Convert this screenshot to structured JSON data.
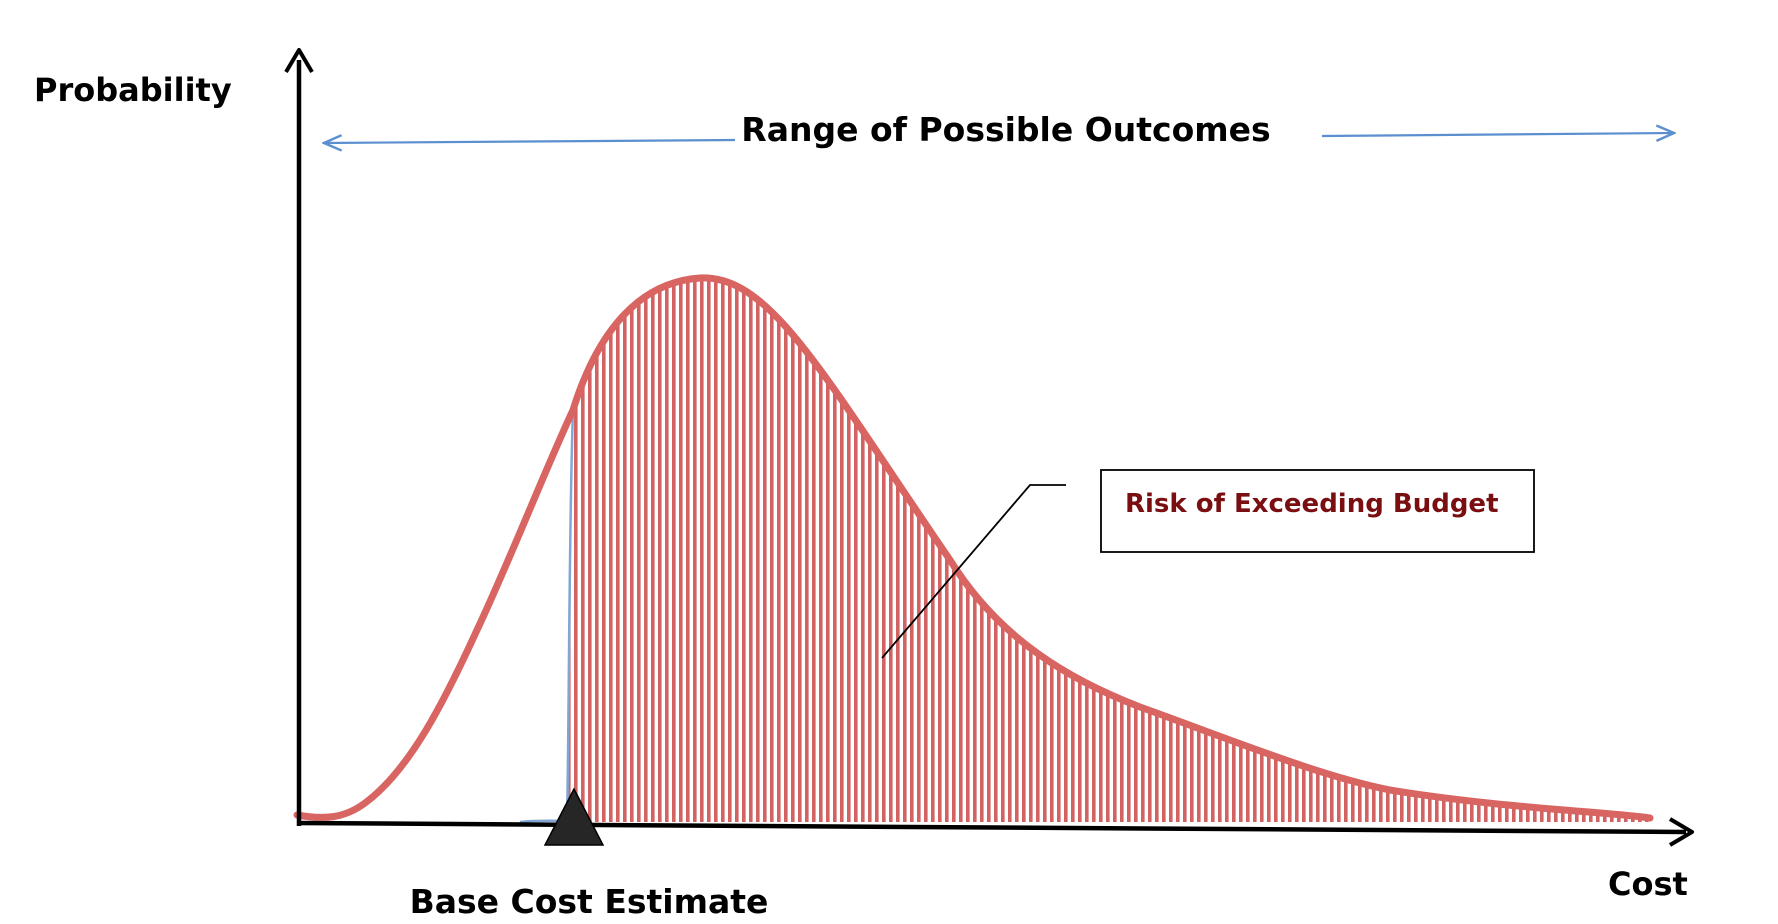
{
  "labels": {
    "y_axis": "Probability",
    "x_axis": "Cost",
    "range": "Range of Possible Outcomes",
    "base_estimate": "Base Cost Estimate",
    "risk": "Risk of Exceeding Budget"
  },
  "colors": {
    "curve": "#d86561",
    "hatch": "#c9403f",
    "outline": "#7fa6d6",
    "range_arrow": "#5b8fcf",
    "risk_text": "#7a0f12",
    "axis": "#000000",
    "marker": "#262626"
  },
  "icons": {
    "base_marker": "triangle-marker-icon",
    "range_left": "arrow-left-icon",
    "range_right": "arrow-right-icon"
  }
}
